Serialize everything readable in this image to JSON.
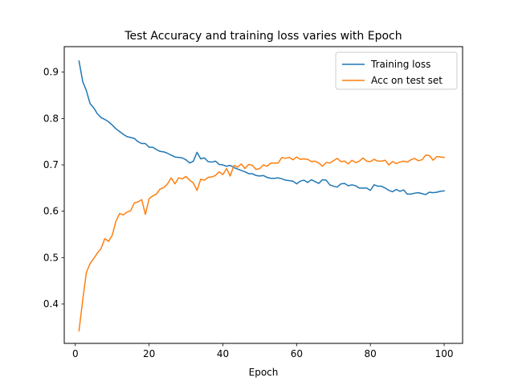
{
  "chart_data": {
    "type": "line",
    "title": "Test Accuracy and training loss varies with Epoch",
    "xlabel": "Epoch",
    "ylabel": "",
    "xlim": [
      -3,
      105
    ],
    "ylim": [
      0.315,
      0.955
    ],
    "xticks": [
      0,
      20,
      40,
      60,
      80,
      100
    ],
    "yticks": [
      0.4,
      0.5,
      0.6,
      0.7,
      0.8,
      0.9
    ],
    "grid": false,
    "legend_position": "top-right",
    "x": [
      1,
      2,
      3,
      4,
      5,
      6,
      7,
      8,
      9,
      10,
      11,
      12,
      13,
      14,
      15,
      16,
      17,
      18,
      19,
      20,
      21,
      22,
      23,
      24,
      25,
      26,
      27,
      28,
      29,
      30,
      31,
      32,
      33,
      34,
      35,
      36,
      37,
      38,
      39,
      40,
      41,
      42,
      43,
      44,
      45,
      46,
      47,
      48,
      49,
      50,
      51,
      52,
      53,
      54,
      55,
      56,
      57,
      58,
      59,
      60,
      61,
      62,
      63,
      64,
      65,
      66,
      67,
      68,
      69,
      70,
      71,
      72,
      73,
      74,
      75,
      76,
      77,
      78,
      79,
      80,
      81,
      82,
      83,
      84,
      85,
      86,
      87,
      88,
      89,
      90,
      91,
      92,
      93,
      94,
      95,
      96,
      97,
      98,
      99,
      100
    ],
    "series": [
      {
        "name": "Training loss",
        "color": "#1f77b4",
        "values": [
          0.924,
          0.88,
          0.86,
          0.832,
          0.823,
          0.81,
          0.802,
          0.798,
          0.793,
          0.786,
          0.778,
          0.772,
          0.766,
          0.761,
          0.759,
          0.757,
          0.75,
          0.746,
          0.746,
          0.738,
          0.738,
          0.733,
          0.729,
          0.728,
          0.725,
          0.721,
          0.717,
          0.716,
          0.715,
          0.711,
          0.704,
          0.708,
          0.727,
          0.713,
          0.715,
          0.707,
          0.706,
          0.708,
          0.701,
          0.7,
          0.697,
          0.699,
          0.694,
          0.691,
          0.688,
          0.685,
          0.681,
          0.681,
          0.677,
          0.676,
          0.677,
          0.673,
          0.671,
          0.671,
          0.672,
          0.67,
          0.667,
          0.666,
          0.665,
          0.659,
          0.665,
          0.667,
          0.662,
          0.668,
          0.664,
          0.66,
          0.668,
          0.667,
          0.657,
          0.654,
          0.652,
          0.659,
          0.66,
          0.655,
          0.657,
          0.655,
          0.65,
          0.65,
          0.65,
          0.645,
          0.657,
          0.654,
          0.654,
          0.65,
          0.645,
          0.642,
          0.647,
          0.643,
          0.646,
          0.637,
          0.637,
          0.639,
          0.64,
          0.638,
          0.636,
          0.641,
          0.64,
          0.641,
          0.643,
          0.644
        ]
      },
      {
        "name": "Acc on test set",
        "color": "#ff7f0e",
        "values": [
          0.342,
          0.408,
          0.468,
          0.487,
          0.498,
          0.51,
          0.52,
          0.541,
          0.535,
          0.548,
          0.578,
          0.595,
          0.592,
          0.598,
          0.601,
          0.618,
          0.62,
          0.625,
          0.593,
          0.627,
          0.633,
          0.637,
          0.648,
          0.651,
          0.659,
          0.672,
          0.659,
          0.672,
          0.67,
          0.675,
          0.667,
          0.661,
          0.645,
          0.669,
          0.667,
          0.673,
          0.674,
          0.677,
          0.685,
          0.679,
          0.692,
          0.676,
          0.699,
          0.695,
          0.702,
          0.692,
          0.701,
          0.699,
          0.69,
          0.692,
          0.7,
          0.697,
          0.704,
          0.704,
          0.704,
          0.716,
          0.714,
          0.716,
          0.711,
          0.717,
          0.712,
          0.713,
          0.712,
          0.707,
          0.708,
          0.704,
          0.697,
          0.705,
          0.704,
          0.709,
          0.714,
          0.707,
          0.708,
          0.702,
          0.71,
          0.705,
          0.708,
          0.715,
          0.708,
          0.707,
          0.712,
          0.708,
          0.708,
          0.71,
          0.7,
          0.707,
          0.703,
          0.706,
          0.708,
          0.706,
          0.711,
          0.714,
          0.709,
          0.711,
          0.721,
          0.72,
          0.71,
          0.718,
          0.717,
          0.716
        ]
      }
    ]
  }
}
